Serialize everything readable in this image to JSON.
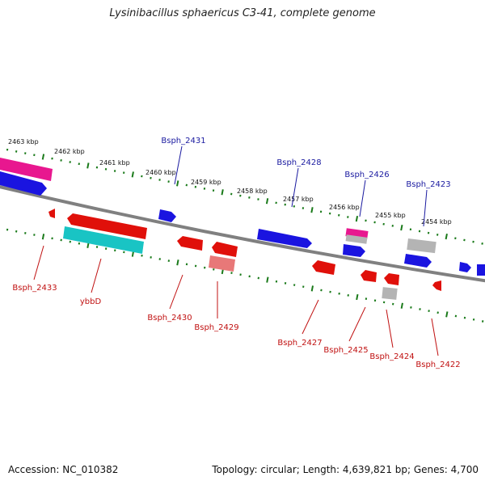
{
  "title": "Lysinibacillus sphaericus C3-41, complete genome",
  "footer": {
    "accession": "Accession: NC_010382",
    "topology": "Topology: circular; Length: 4,639,821 bp; Genes: 4,700"
  },
  "colors": {
    "forward_gene": "#1a14e0",
    "reverse_gene": "#e0100a",
    "rna_teal": "#19c4c4",
    "pseudo_gray": "#b4b4b4",
    "pink": "#e8178f",
    "light_red": "#e87878",
    "tick_green": "#1a7a1a",
    "backbone": "#808080",
    "label_forward": "#1a1aa0",
    "label_reverse": "#c01010"
  },
  "scale_labels": [
    "2463 kbp",
    "2462 kbp",
    "2461 kbp",
    "2460 kbp",
    "2459 kbp",
    "2458 kbp",
    "2457 kbp",
    "2456 kbp",
    "2455 kbp",
    "2454 kbp"
  ],
  "forward_labels": [
    "Bsph_2431",
    "Bsph_2428",
    "Bsph_2426",
    "Bsph_2423"
  ],
  "reverse_labels": [
    "Bsph_2433",
    "ybbD",
    "Bsph_2430",
    "Bsph_2429",
    "Bsph_2427",
    "Bsph_2425",
    "Bsph_2424",
    "Bsph_2422"
  ]
}
